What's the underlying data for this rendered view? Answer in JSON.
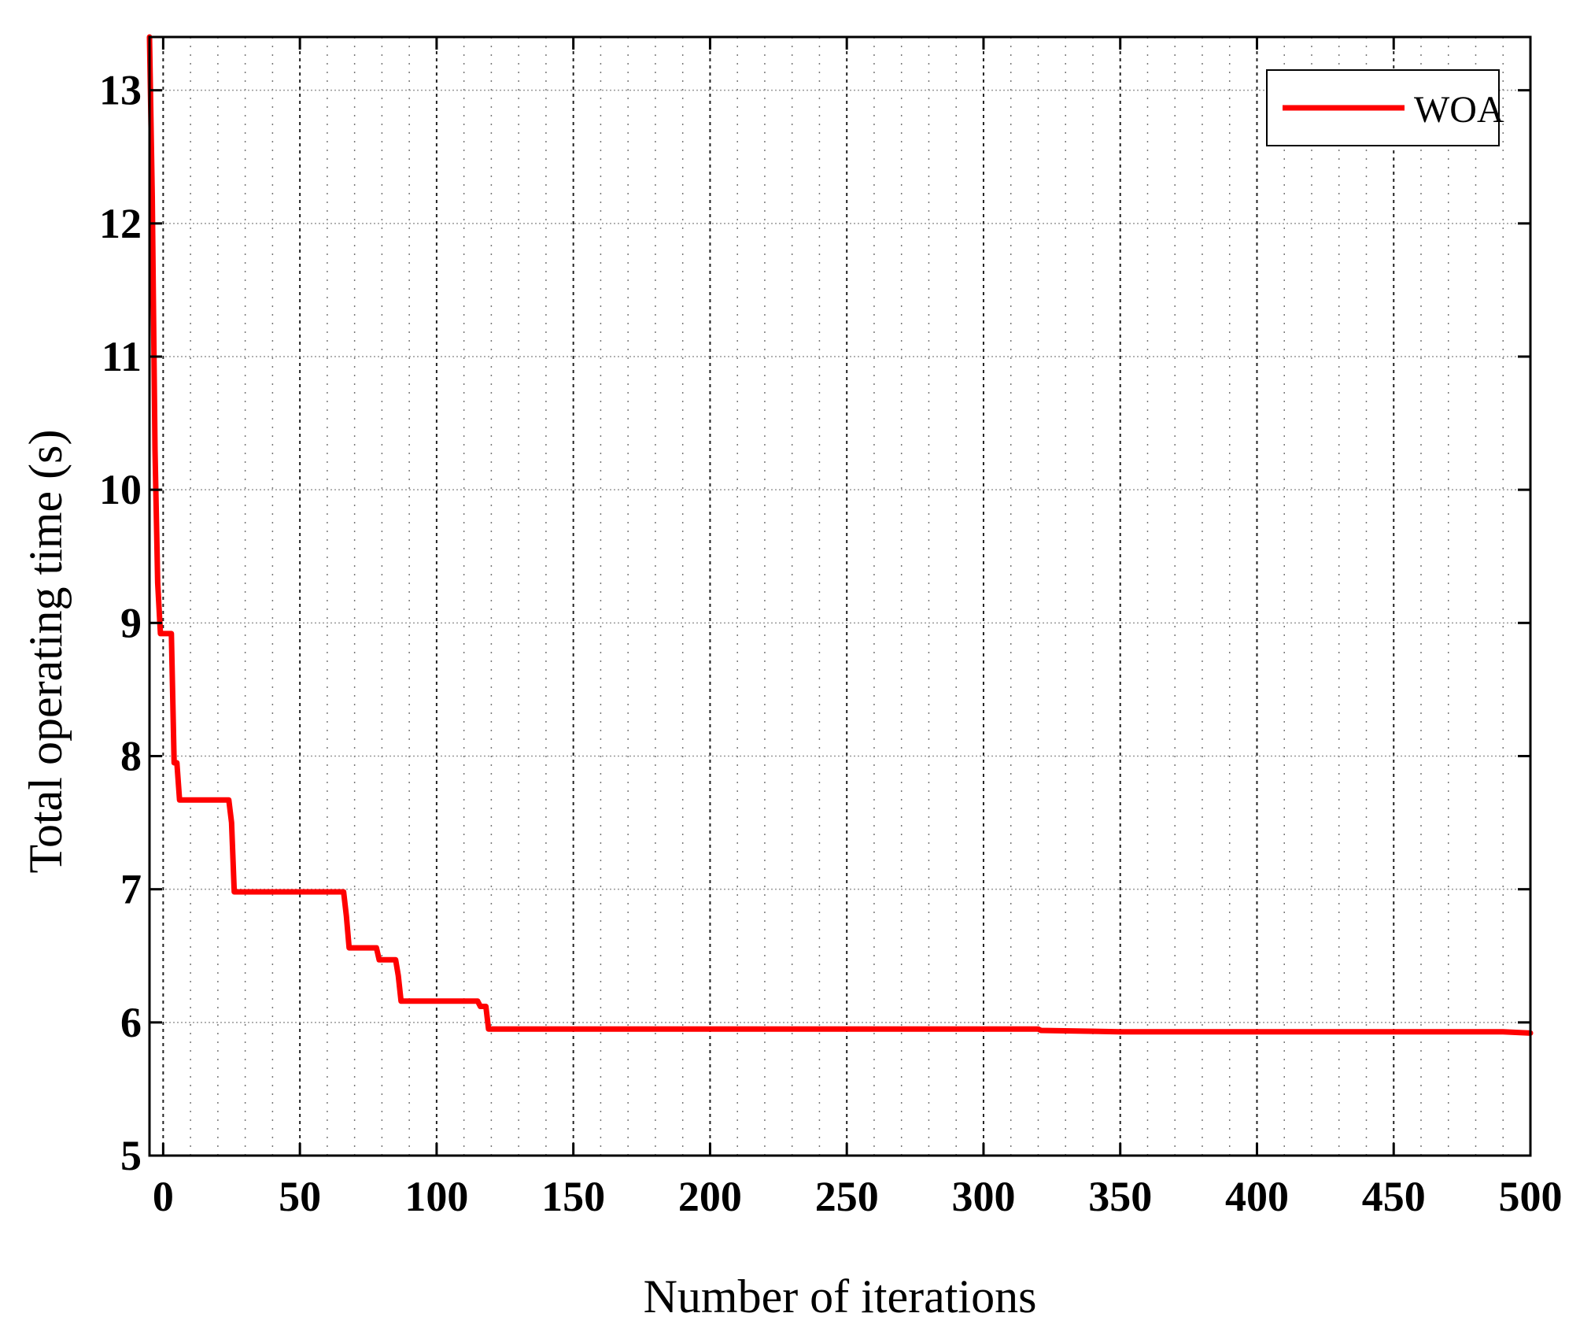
{
  "chart_data": {
    "type": "line",
    "xlabel": "Number of iterations",
    "ylabel": "Total operating time (s)",
    "xlim": [
      -5,
      500
    ],
    "ylim": [
      5,
      13.4
    ],
    "xticks": [
      0,
      50,
      100,
      150,
      200,
      250,
      300,
      350,
      400,
      450,
      500
    ],
    "yticks": [
      5,
      6,
      7,
      8,
      9,
      10,
      11,
      12,
      13
    ],
    "grid": true,
    "legend_position": "top-right",
    "series": [
      {
        "name": "WOA",
        "color": "#ff0000",
        "x": [
          -5,
          -4,
          -3,
          -2,
          -1,
          0,
          1,
          2,
          3,
          4,
          5,
          6,
          7,
          8,
          24,
          25,
          26,
          27,
          66,
          67,
          68,
          69,
          78,
          79,
          80,
          81,
          85,
          86,
          87,
          88,
          115,
          116,
          118,
          119,
          320,
          321,
          350,
          490,
          500
        ],
        "y": [
          13.4,
          12.2,
          10.3,
          9.3,
          8.92,
          8.92,
          8.92,
          8.92,
          8.92,
          7.95,
          7.95,
          7.67,
          7.67,
          7.67,
          7.67,
          7.5,
          6.98,
          6.98,
          6.98,
          6.8,
          6.56,
          6.56,
          6.56,
          6.47,
          6.47,
          6.47,
          6.47,
          6.35,
          6.16,
          6.16,
          6.16,
          6.12,
          6.12,
          5.95,
          5.95,
          5.94,
          5.93,
          5.93,
          5.92
        ]
      }
    ]
  }
}
